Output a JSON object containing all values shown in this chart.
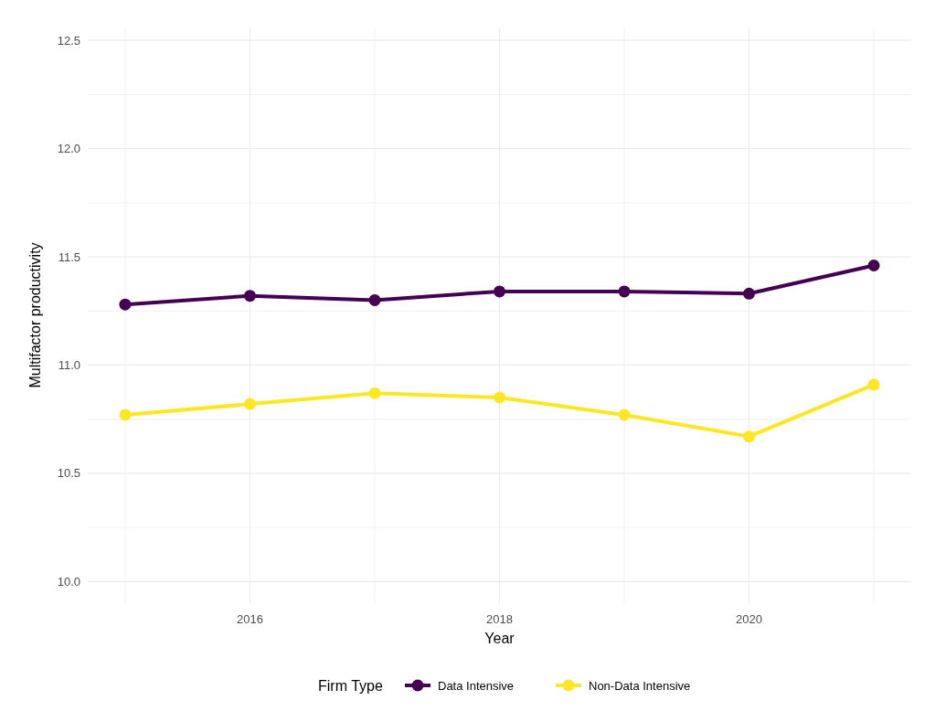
{
  "chart_data": {
    "type": "line",
    "xlabel": "Year",
    "ylabel": "Multifactor productivity",
    "legend_title": "Firm Type",
    "x": [
      2015,
      2016,
      2017,
      2018,
      2019,
      2020,
      2021
    ],
    "series": [
      {
        "name": "Data Intensive",
        "color": "#440154",
        "values": [
          11.28,
          11.32,
          11.3,
          11.34,
          11.34,
          11.33,
          11.46
        ]
      },
      {
        "name": "Non-Data Intensive",
        "color": "#fde725",
        "values": [
          10.77,
          10.82,
          10.87,
          10.85,
          10.77,
          10.67,
          10.91
        ]
      }
    ],
    "xlim": [
      2014.7,
      2021.3
    ],
    "xticks": [
      {
        "value": 2015,
        "label": null
      },
      2016,
      {
        "value": 2017,
        "label": null
      },
      2018,
      {
        "value": 2019,
        "label": null
      },
      2020,
      {
        "value": 2021,
        "label": null
      }
    ],
    "ylim": [
      9.9,
      12.56
    ],
    "yticks": [
      {
        "value": 10,
        "label": "10.0"
      },
      {
        "value": 10.25,
        "label": null
      },
      10.5,
      {
        "value": 10.75,
        "label": null
      },
      {
        "value": 11,
        "label": "11.0"
      },
      {
        "value": 11.25,
        "label": null
      },
      11.5,
      {
        "value": 11.75,
        "label": null
      },
      {
        "value": 12,
        "label": "12.0"
      },
      {
        "value": 12.25,
        "label": null
      },
      12.5
    ],
    "grid": true,
    "legend": "bottom",
    "marker": "circle",
    "line_style": "solid"
  }
}
